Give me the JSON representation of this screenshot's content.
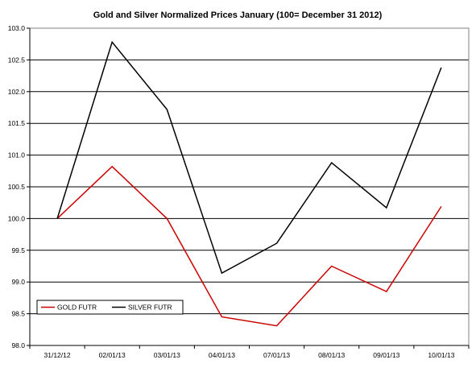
{
  "chart_data": {
    "type": "line",
    "title": "Gold and Silver Normalized Prices January (100= December 31 2012)",
    "xlabel": "",
    "ylabel": "",
    "categories": [
      "31/12/12",
      "02/01/13",
      "03/01/13",
      "04/01/13",
      "07/01/13",
      "08/01/13",
      "09/01/13",
      "10/01/13"
    ],
    "ylim": [
      98.0,
      103.0
    ],
    "yticks": [
      "98.0",
      "98.5",
      "99.0",
      "99.5",
      "100.0",
      "100.5",
      "101.0",
      "101.5",
      "102.0",
      "102.5",
      "103.0"
    ],
    "grid": true,
    "legend_position": "bottom-left",
    "series": [
      {
        "name": "GOLD  FUTR",
        "color": "#cc0000",
        "values": [
          100.0,
          100.82,
          100.0,
          98.45,
          98.31,
          99.25,
          98.85,
          100.19
        ]
      },
      {
        "name": "SILVER  FUTR",
        "color": "#000000",
        "values": [
          100.0,
          102.78,
          101.72,
          99.14,
          99.61,
          100.88,
          100.17,
          102.38
        ]
      }
    ]
  }
}
